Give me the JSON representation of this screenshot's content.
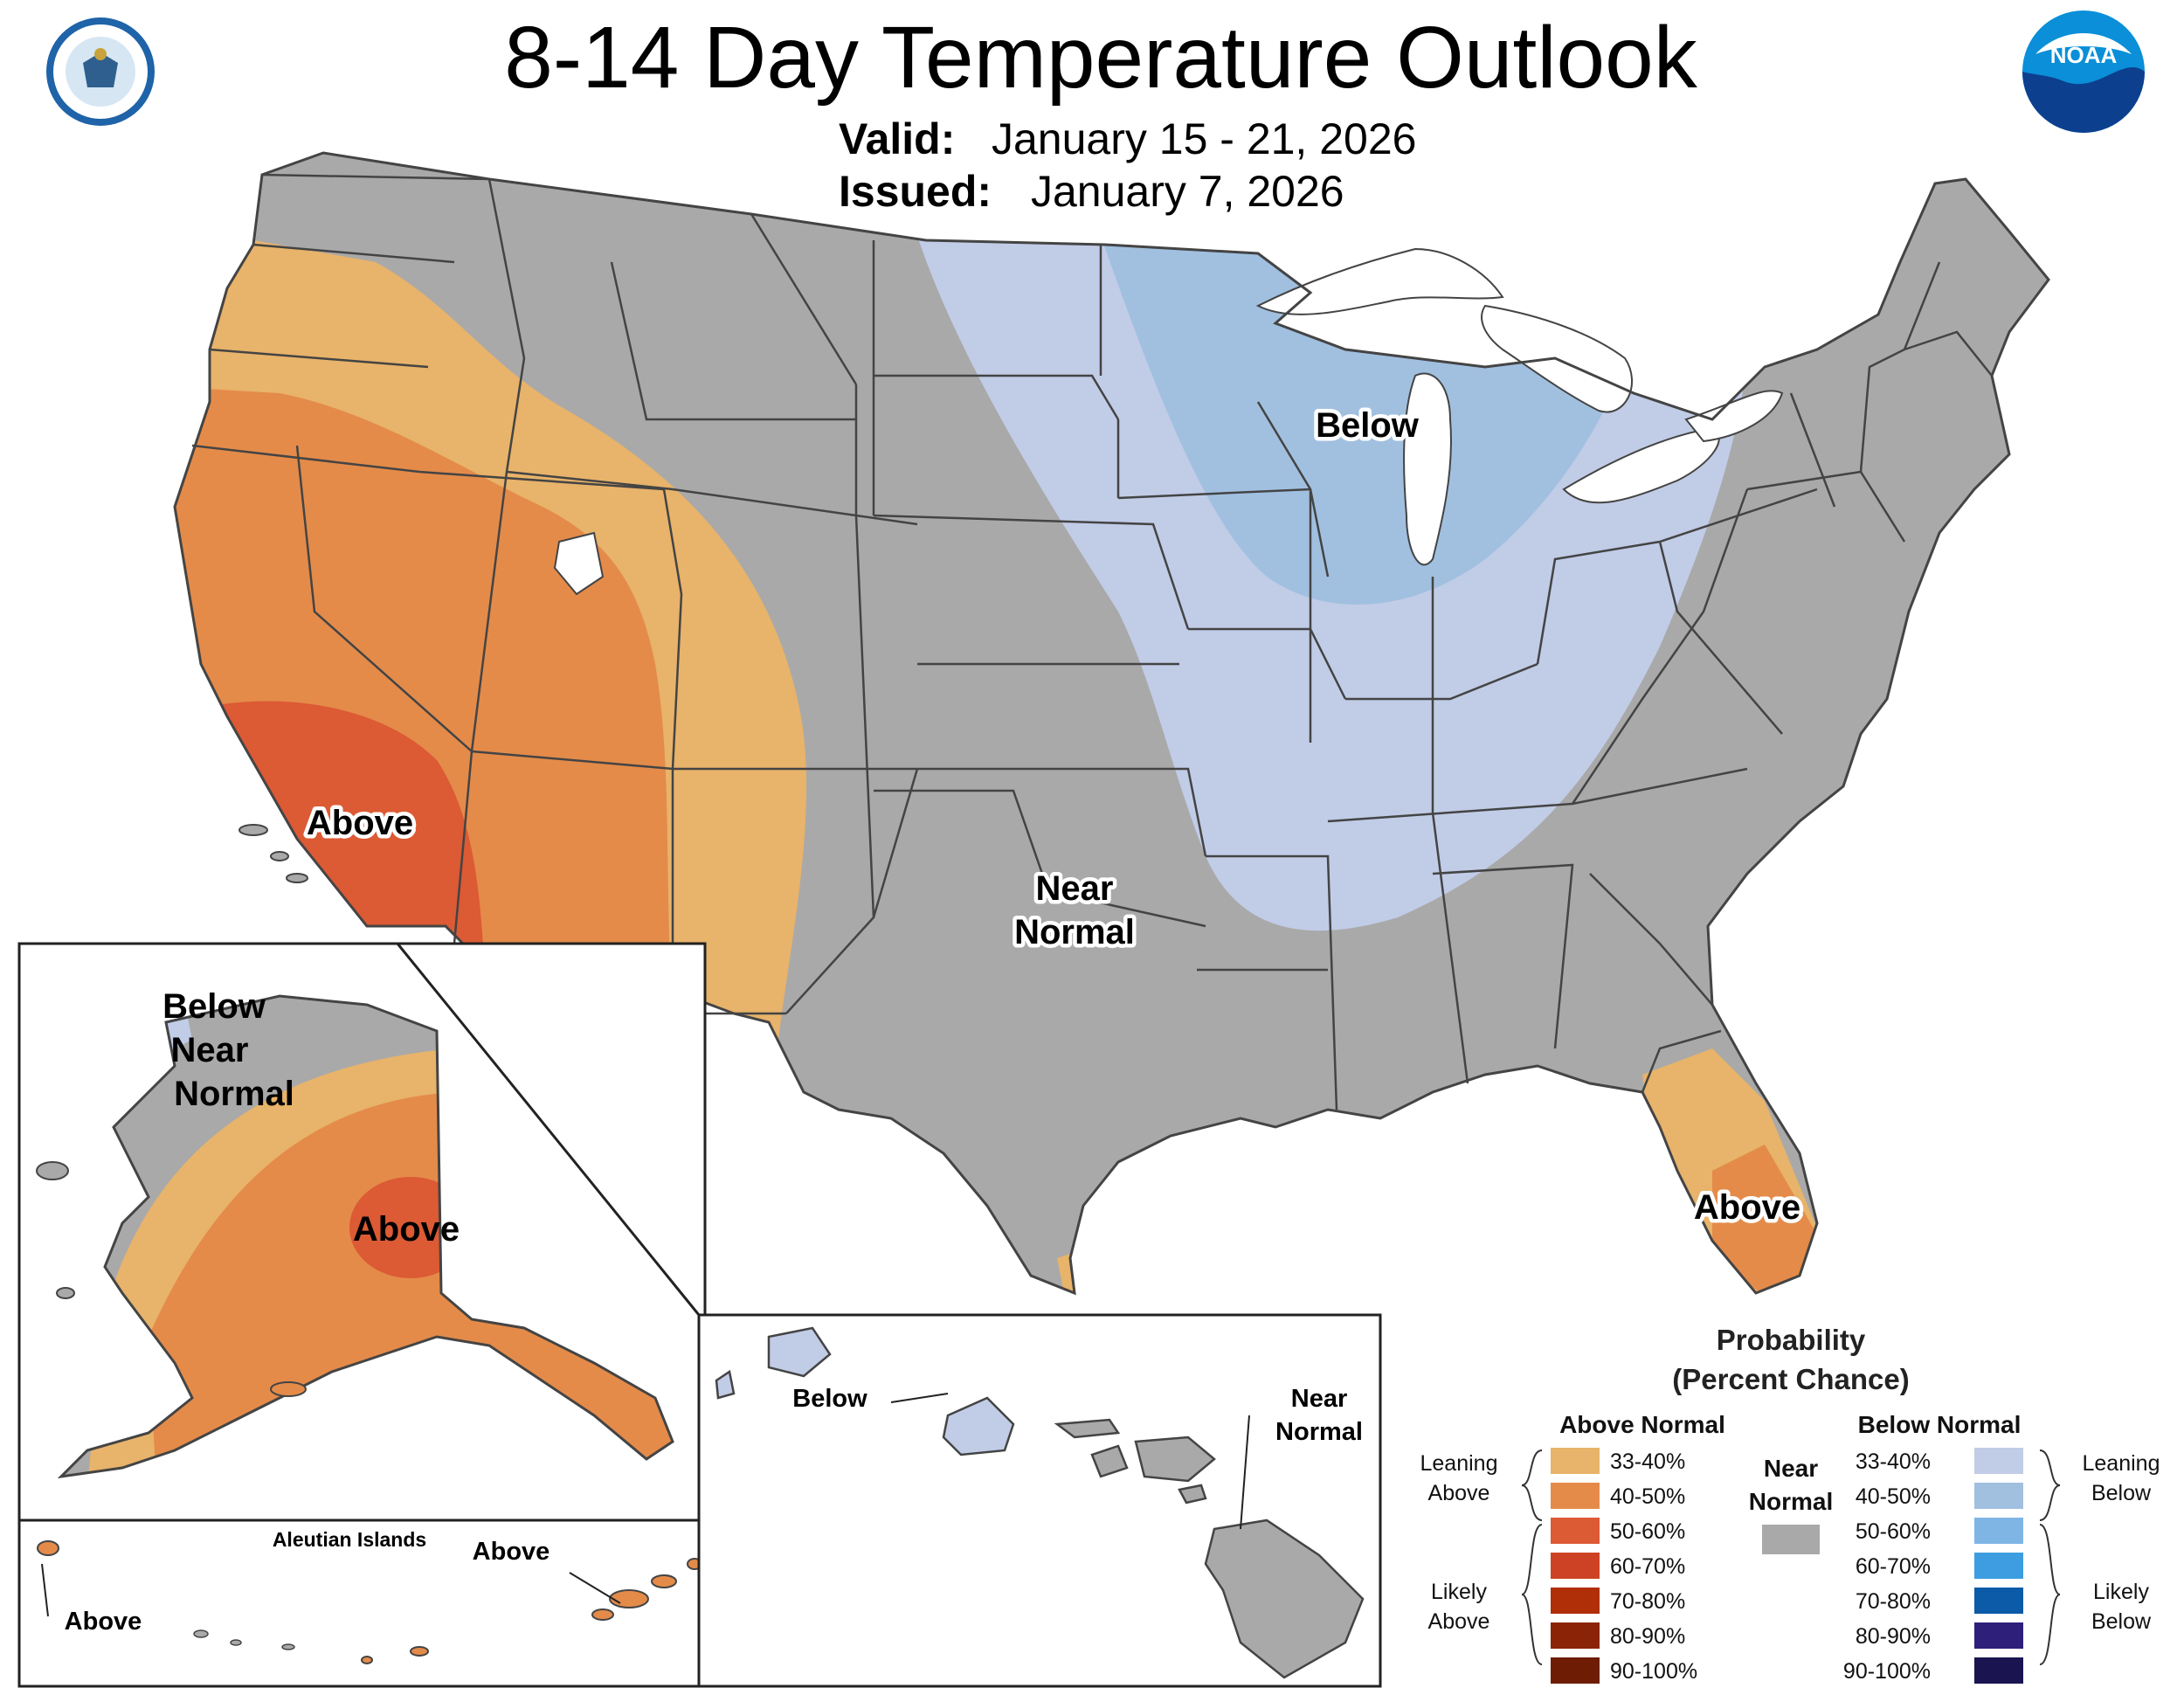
{
  "header": {
    "title": "8-14 Day Temperature Outlook",
    "valid_label": "Valid:",
    "valid_value": "January 15 - 21, 2026",
    "issued_label": "Issued:",
    "issued_value": "January 7, 2026",
    "noaa_logo_text": "NOAA"
  },
  "map_labels": {
    "west_above": "Above",
    "midwest_below": "Below",
    "central_near_1": "Near",
    "central_near_2": "Normal",
    "florida_above": "Above"
  },
  "alaska": {
    "below": "Below",
    "near_1": "Near",
    "near_2": "Normal",
    "above": "Above"
  },
  "aleutians": {
    "title": "Aleutian Islands",
    "above_left": "Above",
    "above_right": "Above"
  },
  "hawaii": {
    "below": "Below",
    "near_1": "Near",
    "near_2": "Normal"
  },
  "legend": {
    "title_1": "Probability",
    "title_2": "(Percent Chance)",
    "above_header": "Above Normal",
    "below_header": "Below Normal",
    "near_1": "Near",
    "near_2": "Normal",
    "leaning_above_1": "Leaning",
    "leaning_above_2": "Above",
    "likely_above_1": "Likely",
    "likely_above_2": "Above",
    "leaning_below_1": "Leaning",
    "leaning_below_2": "Below",
    "likely_below_1": "Likely",
    "likely_below_2": "Below",
    "above_bins": [
      {
        "label": "33-40%",
        "color": "#e8b36a"
      },
      {
        "label": "40-50%",
        "color": "#e48b4a"
      },
      {
        "label": "50-60%",
        "color": "#dc5a34"
      },
      {
        "label": "60-70%",
        "color": "#cd4224"
      },
      {
        "label": "70-80%",
        "color": "#b02e08"
      },
      {
        "label": "80-90%",
        "color": "#8b2306"
      },
      {
        "label": "90-100%",
        "color": "#6e1d04"
      }
    ],
    "below_bins": [
      {
        "label": "33-40%",
        "color": "#c1cce7"
      },
      {
        "label": "40-50%",
        "color": "#a1c0e0"
      },
      {
        "label": "50-60%",
        "color": "#7fb5e5"
      },
      {
        "label": "60-70%",
        "color": "#3d9de0"
      },
      {
        "label": "70-80%",
        "color": "#0b5ba8"
      },
      {
        "label": "80-90%",
        "color": "#2d1f7a"
      },
      {
        "label": "90-100%",
        "color": "#1a1550"
      }
    ],
    "near_color": "#a9a9a9"
  },
  "colors": {
    "near_normal": "#a9a9a9",
    "water": "#ffffff"
  }
}
